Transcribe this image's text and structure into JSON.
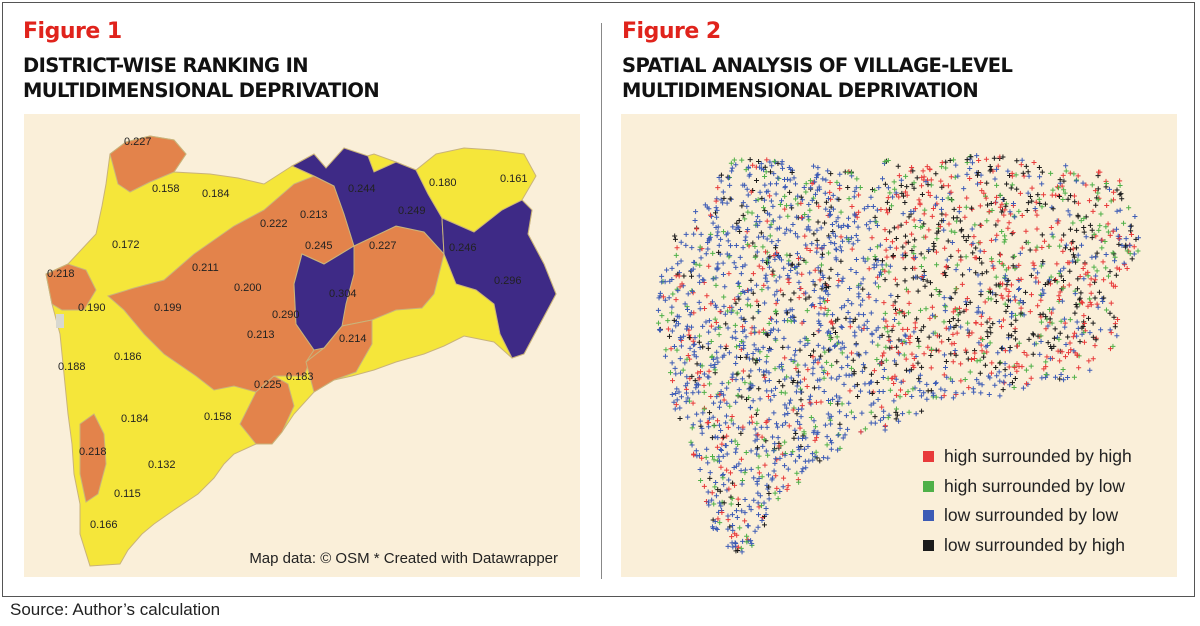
{
  "figure1": {
    "label": "Figure 1",
    "title": "DISTRICT-WISE RANKING IN\nMULTIDIMENSIONAL DEPRIVATION",
    "credit": "Map data: © OSM * Created with Datawrapper",
    "colors": {
      "low": "#f5e63a",
      "mid": "#e3834b",
      "high": "#3e2a86",
      "background": "#faefd9",
      "border": "#c9b37a"
    },
    "district_values": [
      "0.227",
      "0.158",
      "0.184",
      "0.172",
      "0.218",
      "0.190",
      "0.188",
      "0.186",
      "0.211",
      "0.199",
      "0.200",
      "0.222",
      "0.213",
      "0.213",
      "0.244",
      "0.249",
      "0.245",
      "0.304",
      "0.290",
      "0.227",
      "0.214",
      "0.180",
      "0.161",
      "0.246",
      "0.296",
      "0.225",
      "0.183",
      "0.184",
      "0.158",
      "0.218",
      "0.132",
      "0.115",
      "0.166"
    ]
  },
  "figure2": {
    "label": "Figure 2",
    "title": "SPATIAL ANALYSIS OF VILLAGE-LEVEL\nMULTIDIMENSIONAL DEPRIVATION",
    "legend": [
      {
        "label": "high surrounded by high",
        "color": "#e83a3a"
      },
      {
        "label": "high surrounded by low",
        "color": "#4fb048"
      },
      {
        "label": "low surrounded by low",
        "color": "#3c5bb5"
      },
      {
        "label": "low surrounded by high",
        "color": "#1b1b1b"
      }
    ],
    "background": "#faefd9"
  },
  "source": "Source: Author’s calculation"
}
